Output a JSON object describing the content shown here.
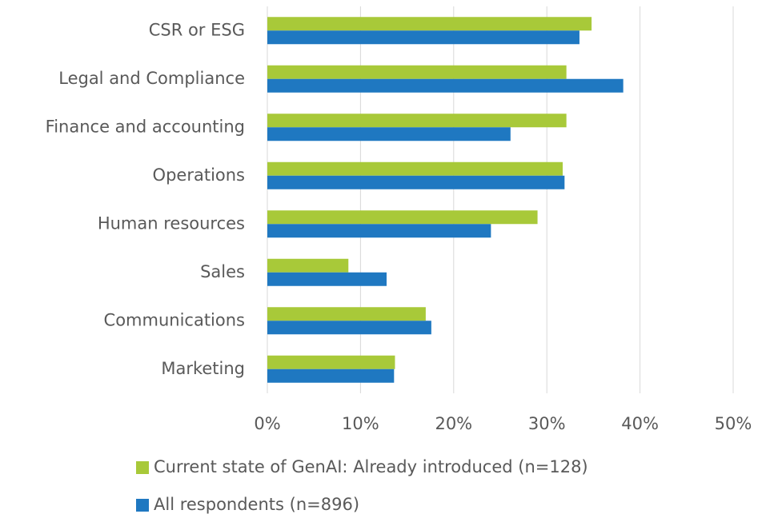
{
  "chart_data": {
    "type": "barh",
    "categories": [
      "CSR or ESG",
      "Legal and Compliance",
      "Finance and accounting",
      "Operations",
      "Human resources",
      "Sales",
      "Communications",
      "Marketing"
    ],
    "series": [
      {
        "name": "Current state of GenAI: Already introduced (n=128)",
        "color": "#a8c939",
        "values": [
          34.8,
          32.1,
          32.1,
          31.7,
          29.0,
          8.7,
          17.0,
          13.7
        ]
      },
      {
        "name": "All respondents (n=896)",
        "color": "#1f78c1",
        "values": [
          33.5,
          38.2,
          26.1,
          31.9,
          24.0,
          12.8,
          17.6,
          13.6
        ]
      }
    ],
    "xlim": [
      0,
      50
    ],
    "xticks": [
      {
        "value": 0,
        "label": "0%"
      },
      {
        "value": 10,
        "label": "10%"
      },
      {
        "value": 20,
        "label": "20%"
      },
      {
        "value": 30,
        "label": "30%"
      },
      {
        "value": 40,
        "label": "40%"
      },
      {
        "value": 50,
        "label": "50%"
      }
    ],
    "grid": true,
    "legend": "bottom"
  }
}
